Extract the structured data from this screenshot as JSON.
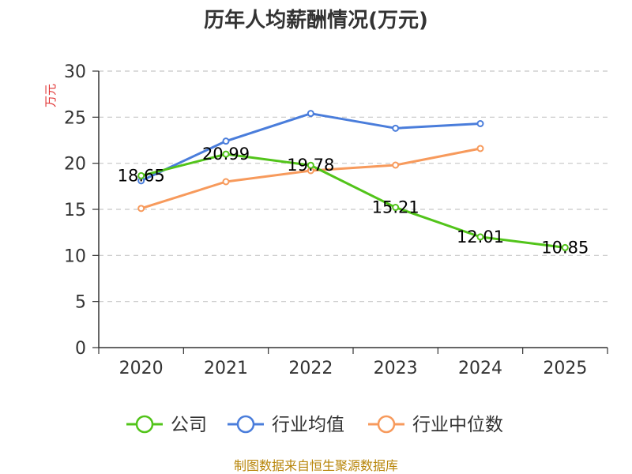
{
  "chart_data": {
    "type": "line",
    "title": "历年人均薪酬情况(万元)",
    "ylabel": "万元",
    "xlabel": "",
    "ylim": [
      0,
      30
    ],
    "yticks": [
      0,
      5,
      10,
      15,
      20,
      25,
      30
    ],
    "categories": [
      "2020",
      "2021",
      "2022",
      "2023",
      "2024",
      "2025"
    ],
    "grid": true,
    "legend_position": "bottom",
    "series": [
      {
        "name": "公司",
        "color": "#52c41a",
        "values": [
          18.65,
          20.99,
          19.78,
          15.21,
          12.01,
          10.85
        ],
        "labels": [
          "18.65",
          "20.99",
          "19.78",
          "15.21",
          "12.01",
          "10.85"
        ]
      },
      {
        "name": "行业均值",
        "color": "#4a7ddb",
        "values": [
          18.1,
          22.4,
          25.4,
          23.8,
          24.3,
          null
        ]
      },
      {
        "name": "行业中位数",
        "color": "#f79a5c",
        "values": [
          15.1,
          18.0,
          19.2,
          19.8,
          21.6,
          null
        ]
      }
    ]
  },
  "source": "制图数据来自恒生聚源数据库"
}
